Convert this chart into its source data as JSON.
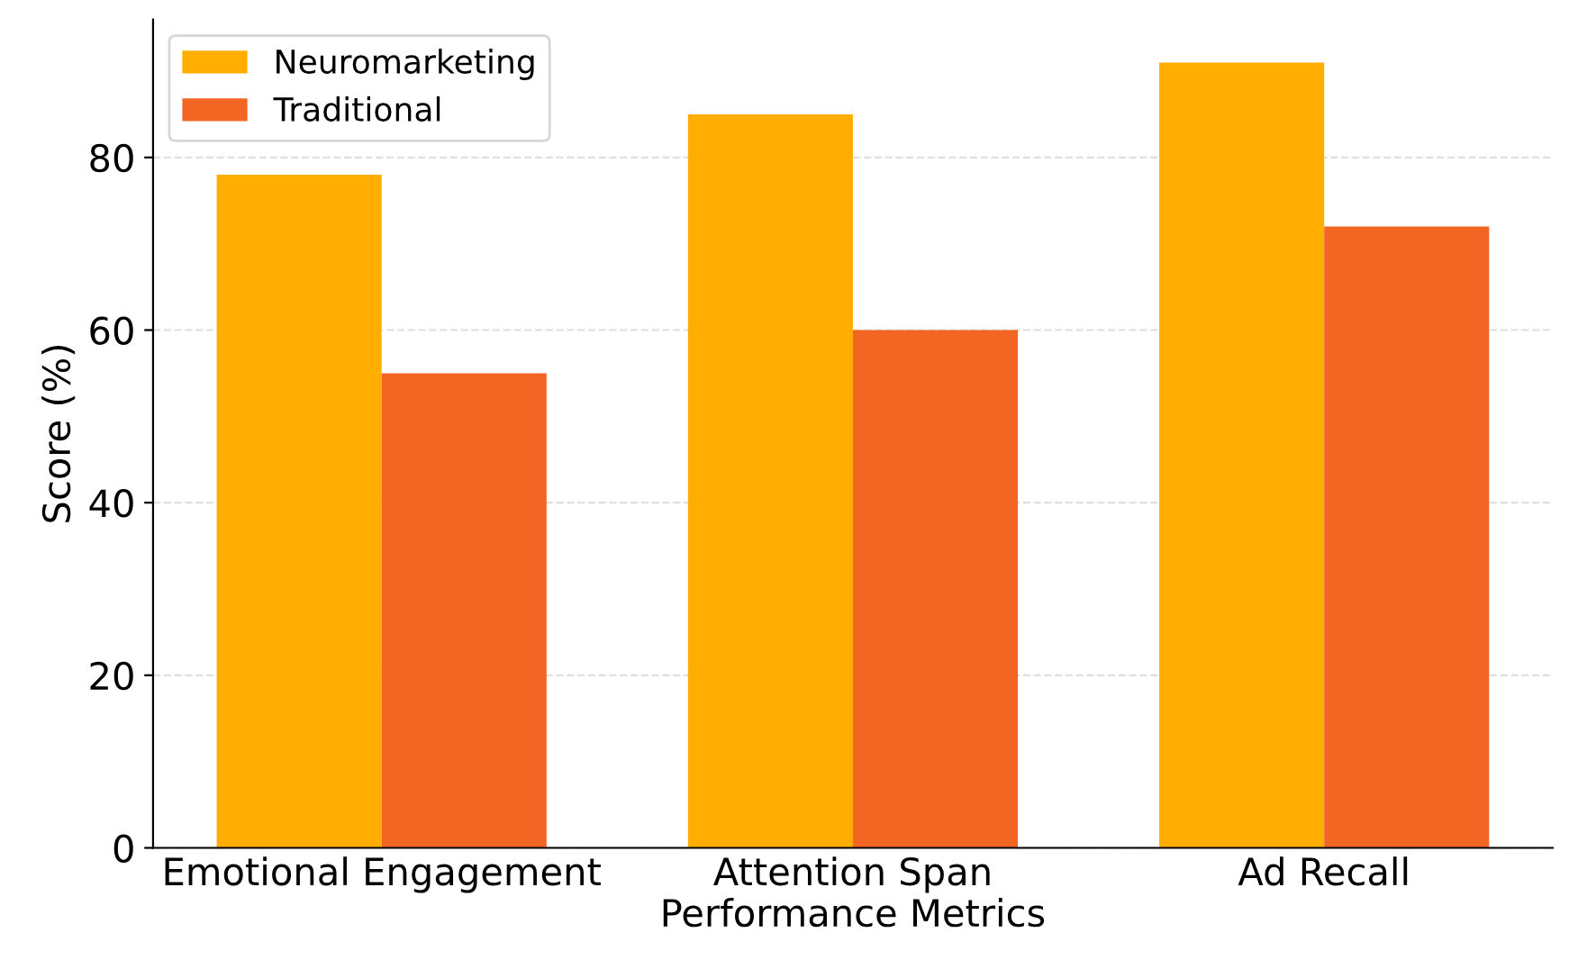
{
  "chart_data": {
    "type": "bar",
    "xlabel": "Performance Metrics",
    "ylabel": "Score (%)",
    "categories": [
      "Emotional Engagement",
      "Attention Span",
      "Ad Recall"
    ],
    "series": [
      {
        "name": "Neuromarketing",
        "color": "#ffae00",
        "values": [
          78,
          85,
          91
        ]
      },
      {
        "name": "Traditional",
        "color": "#f26522",
        "values": [
          55,
          60,
          72
        ]
      }
    ],
    "ylim": [
      0,
      96
    ],
    "yticks": [
      0,
      20,
      40,
      60,
      80
    ],
    "grid": "y",
    "legend": "top left",
    "line_style": "dashed"
  }
}
